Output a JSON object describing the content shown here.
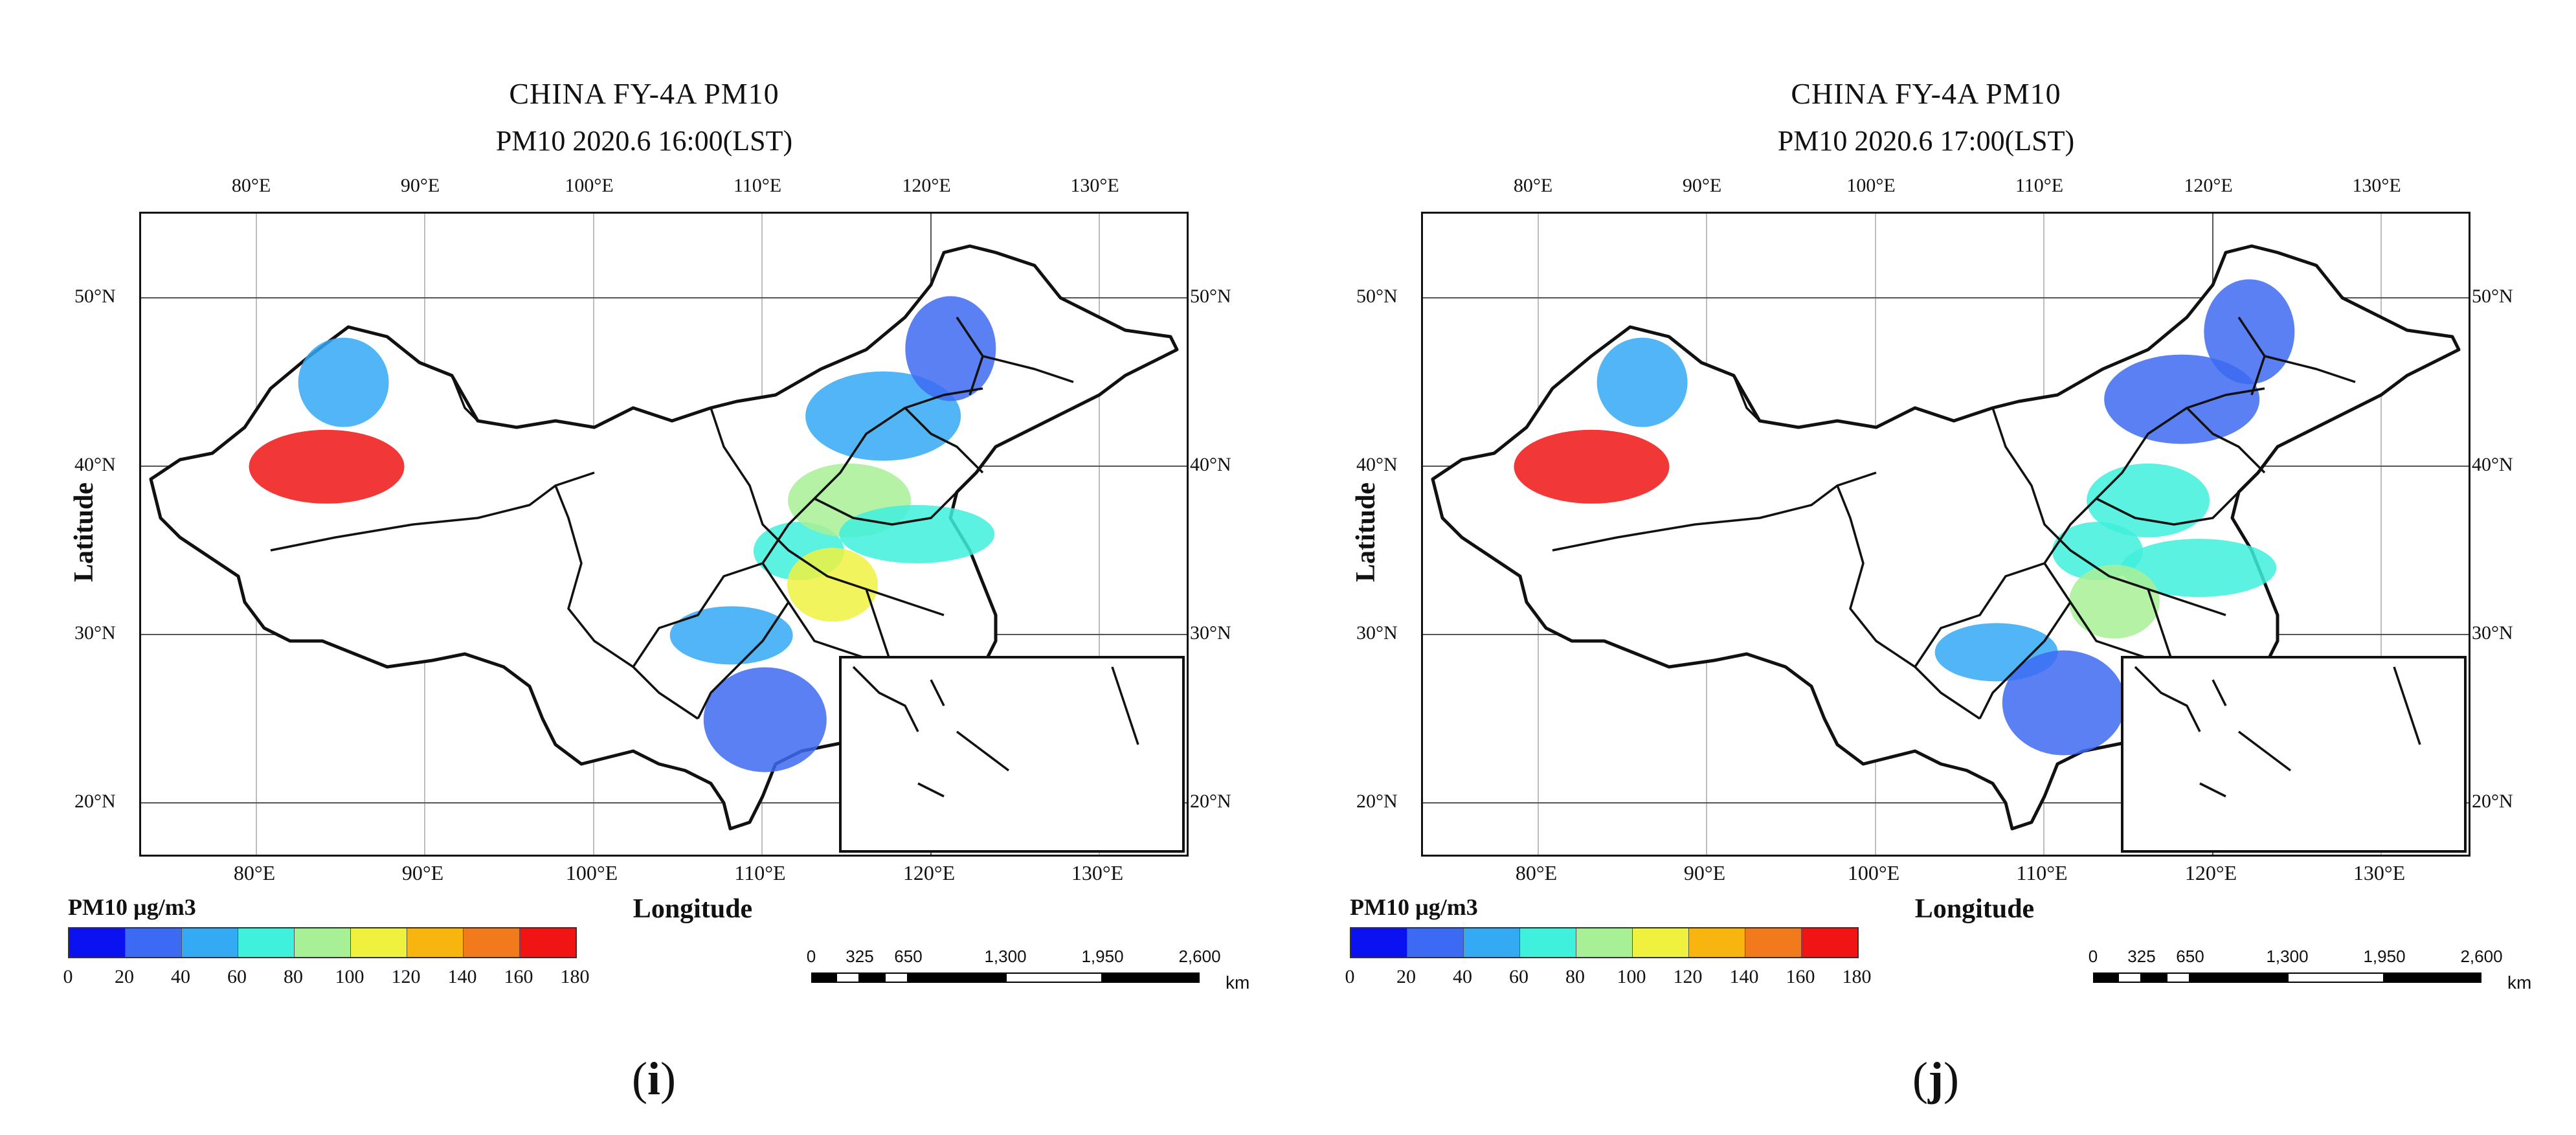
{
  "panels": [
    {
      "title": "CHINA FY-4A  PM10",
      "subtitle": "PM10 2020.6 16:00(LST)",
      "letter": "i",
      "blobs": [
        {
          "lon": 112,
          "lat": 35,
          "level": 3
        },
        {
          "lon": 115,
          "lat": 38,
          "level": 4
        },
        {
          "lon": 117,
          "lat": 43,
          "level": 2
        },
        {
          "lon": 121,
          "lat": 47,
          "level": 1
        },
        {
          "lon": 108,
          "lat": 30,
          "level": 2
        },
        {
          "lon": 84,
          "lat": 40,
          "level": 8
        },
        {
          "lon": 85,
          "lat": 45,
          "level": 2
        },
        {
          "lon": 110,
          "lat": 25,
          "level": 1
        },
        {
          "lon": 119,
          "lat": 36,
          "level": 3
        },
        {
          "lon": 114,
          "lat": 33,
          "level": 5
        }
      ]
    },
    {
      "title": "CHINA FY-4A  PM10",
      "subtitle": "PM10 2020.6 17:00(LST)",
      "letter": "j",
      "blobs": [
        {
          "lon": 113,
          "lat": 35,
          "level": 3
        },
        {
          "lon": 116,
          "lat": 38,
          "level": 3
        },
        {
          "lon": 118,
          "lat": 44,
          "level": 1
        },
        {
          "lon": 122,
          "lat": 48,
          "level": 1
        },
        {
          "lon": 107,
          "lat": 29,
          "level": 2
        },
        {
          "lon": 83,
          "lat": 40,
          "level": 8
        },
        {
          "lon": 86,
          "lat": 45,
          "level": 2
        },
        {
          "lon": 111,
          "lat": 26,
          "level": 1
        },
        {
          "lon": 119,
          "lat": 34,
          "level": 3
        },
        {
          "lon": 114,
          "lat": 32,
          "level": 4
        }
      ]
    }
  ],
  "axes": {
    "xlabel": "Longitude",
    "ylabel": "Latitude",
    "lon_ticks": [
      {
        "value": 80,
        "label_top": "80°E",
        "label_bottom": "80°E"
      },
      {
        "value": 90,
        "label_top": "90°E",
        "label_bottom": "90°E"
      },
      {
        "value": 100,
        "label_top": "100°E",
        "label_bottom": "100°E"
      },
      {
        "value": 110,
        "label_top": "110°E",
        "label_bottom": "110°E"
      },
      {
        "value": 120,
        "label_top": "120°E",
        "label_bottom": "120°E"
      },
      {
        "value": 130,
        "label_top": "130°E",
        "label_bottom": "130°E"
      }
    ],
    "lat_ticks": [
      {
        "value": 50,
        "label": "50°N"
      },
      {
        "value": 40,
        "label": "40°N"
      },
      {
        "value": 30,
        "label": "30°N"
      },
      {
        "value": 20,
        "label": "20°N"
      }
    ],
    "lon_range": [
      73,
      135
    ],
    "lat_range": [
      17,
      55
    ]
  },
  "legend": {
    "title": "PM10 µg/m3",
    "colors": [
      "#0a12f2",
      "#3d6af2",
      "#34a9f4",
      "#3ff0dc",
      "#a8f096",
      "#eef23f",
      "#f7b50e",
      "#f27a1a",
      "#f01414"
    ],
    "ticks": [
      "0",
      "20",
      "40",
      "60",
      "80",
      "100",
      "120",
      "140",
      "160",
      "180"
    ]
  },
  "scalebar": {
    "labels": [
      "0",
      "325",
      "650",
      "1,300",
      "1,950",
      "2,600"
    ],
    "unit": "km"
  }
}
